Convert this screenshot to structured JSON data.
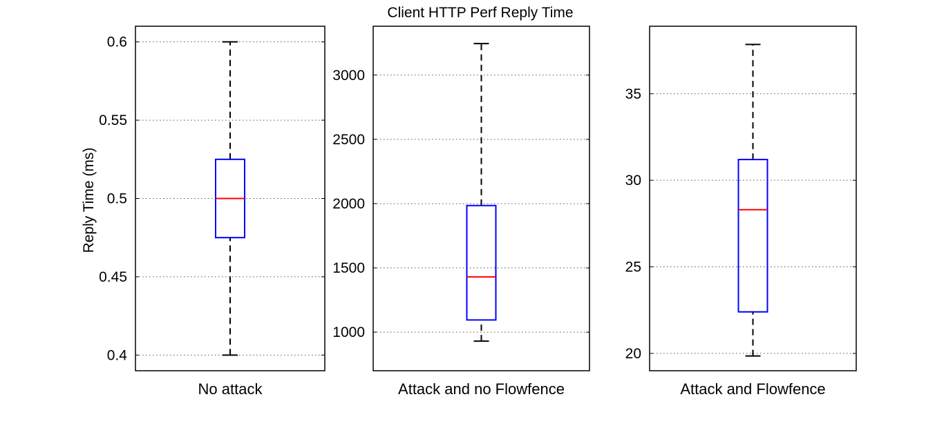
{
  "chart_data": {
    "type": "box",
    "title": "Client HTTP Perf Reply Time",
    "ylabel": "Reply Time (ms)",
    "grid": true,
    "colors": {
      "box": "#0000ff",
      "median": "#ff0000",
      "whisker": "#000000",
      "grid": "#555555"
    },
    "panels": [
      {
        "category": "No attack",
        "ylim": [
          0.39,
          0.61
        ],
        "yticks": [
          0.4,
          0.45,
          0.5,
          0.55,
          0.6
        ],
        "ytick_labels": [
          "0.4",
          "0.45",
          "0.5",
          "0.55",
          "0.6"
        ],
        "box": {
          "min": 0.4,
          "q1": 0.475,
          "median": 0.5,
          "q3": 0.525,
          "max": 0.6
        }
      },
      {
        "category": "Attack and no Flowfence",
        "ylim": [
          700,
          3380
        ],
        "yticks": [
          1000,
          1500,
          2000,
          2500,
          3000
        ],
        "ytick_labels": [
          "1000",
          "1500",
          "2000",
          "2500",
          "3000"
        ],
        "box": {
          "min": 930,
          "q1": 1095,
          "median": 1430,
          "q3": 1985,
          "max": 3245
        }
      },
      {
        "category": "Attack and Flowfence",
        "ylim": [
          19,
          38.9
        ],
        "yticks": [
          20,
          25,
          30,
          35
        ],
        "ytick_labels": [
          "20",
          "25",
          "30",
          "35"
        ],
        "box": {
          "min": 19.85,
          "q1": 22.4,
          "median": 28.3,
          "q3": 31.2,
          "max": 37.85
        }
      }
    ]
  }
}
